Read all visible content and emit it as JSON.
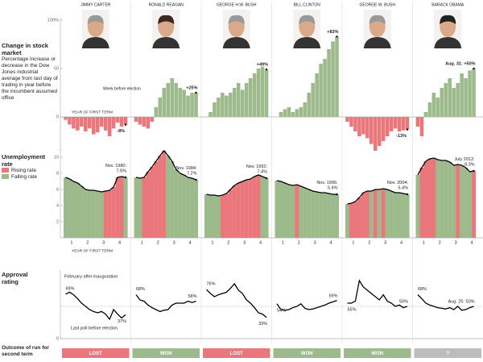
{
  "chart_data": [
    {
      "type": "bar",
      "title": "Change in stock market",
      "subtitle": "Percentage increase or decrease in the Dow Jones industrial average from last day of trading in year before the incumbent assumed office",
      "axis_note": "YEAR OF FIRST TERM",
      "annotation": "Week before election",
      "ylim": [
        -35,
        100
      ],
      "yticks": [
        {
          "value": 100,
          "label": "100%"
        },
        50,
        0
      ],
      "positive_color": "#9dba8c",
      "negative_color": "#e9777b",
      "series": [
        {
          "name": "JIMMY CARTER",
          "values": [
            -3,
            -8,
            -12,
            -14,
            -10,
            -15,
            -12,
            -18,
            -16,
            -10,
            -14,
            -20,
            -12,
            -6,
            -10,
            -8
          ],
          "end_label": "-8%"
        },
        {
          "name": "RONALD REAGAN",
          "values": [
            -5,
            -8,
            -10,
            -12,
            -5,
            10,
            20,
            30,
            35,
            40,
            35,
            30,
            28,
            22,
            25,
            25
          ],
          "end_label": "+25%"
        },
        {
          "name": "GEORGE H.W. BUSH",
          "values": [
            0,
            5,
            15,
            20,
            25,
            22,
            25,
            30,
            35,
            28,
            35,
            40,
            45,
            50,
            52,
            49
          ],
          "end_label": "+49%"
        },
        {
          "name": "BILL CLINTON",
          "values": [
            0,
            5,
            8,
            10,
            5,
            8,
            10,
            15,
            25,
            35,
            45,
            55,
            60,
            70,
            78,
            83
          ],
          "end_label": "+83%"
        },
        {
          "name": "GEORGE W. BUSH",
          "values": [
            -5,
            -10,
            -15,
            -20,
            -18,
            -22,
            -28,
            -35,
            -30,
            -25,
            -20,
            -15,
            -12,
            -15,
            -14,
            -13
          ],
          "end_label": "-13%"
        },
        {
          "name": "BARACK OBAMA",
          "values": [
            -10,
            -20,
            5,
            15,
            25,
            20,
            30,
            35,
            40,
            30,
            35,
            45,
            40,
            48,
            50
          ],
          "end_label": "Aug. 31: +50%"
        }
      ]
    },
    {
      "type": "bar",
      "title": "Unemployment rate",
      "legend": [
        {
          "name": "Rising rate",
          "color": "#e9777b"
        },
        {
          "name": "Falling rate",
          "color": "#9dba8c"
        }
      ],
      "years": [
        "1",
        "2",
        "3",
        "4"
      ],
      "axis_note": "YEAR OF FIRST TERM",
      "ylim": [
        0,
        11
      ],
      "yticks": [
        2,
        4,
        6,
        8,
        10
      ],
      "series": [
        {
          "values": [
            7.5,
            7.3,
            7.0,
            6.8,
            6.4,
            6.0,
            5.9,
            5.9,
            5.8,
            5.7,
            5.8,
            5.9,
            6.3,
            7.5,
            7.6,
            7.5
          ],
          "end_label": "Nov. 1980: 7.5%"
        },
        {
          "values": [
            7.5,
            7.4,
            7.5,
            8.2,
            8.8,
            9.5,
            10.2,
            10.8,
            10.2,
            9.5,
            8.5,
            8.0,
            7.8,
            7.5,
            7.4,
            7.2
          ],
          "end_label": "Nov. 1984: 7.2%"
        },
        {
          "values": [
            5.4,
            5.3,
            5.3,
            5.2,
            5.3,
            5.5,
            6.0,
            6.5,
            6.8,
            7.0,
            7.2,
            7.3,
            7.6,
            7.8,
            7.6,
            7.4
          ],
          "end_label": "Nov. 1992: 7.4%"
        },
        {
          "values": [
            7.1,
            7.0,
            6.8,
            6.6,
            6.5,
            6.6,
            6.4,
            6.2,
            6.0,
            5.8,
            5.7,
            5.6,
            5.6,
            5.5,
            5.4,
            5.4
          ],
          "end_label": "Nov. 1996: 5.4%"
        },
        {
          "values": [
            4.2,
            4.3,
            4.5,
            5.0,
            5.6,
            5.8,
            5.8,
            6.0,
            6.0,
            6.1,
            6.0,
            5.8,
            5.6,
            5.6,
            5.5,
            5.4
          ],
          "end_label": "Nov. 2004: 5.4%"
        },
        {
          "values": [
            7.8,
            8.7,
            9.5,
            9.8,
            9.9,
            9.7,
            9.6,
            9.6,
            9.4,
            9.0,
            9.1,
            9.0,
            8.7,
            8.2,
            8.3
          ],
          "end_label": "July 2012: 8.3%"
        }
      ]
    },
    {
      "type": "line",
      "title": "Approval rating",
      "start_note": "February after inauguration",
      "end_note": "Last poll before election",
      "ylim": [
        0,
        100
      ],
      "yticks": [
        0
      ],
      "reference_line": 50,
      "series": [
        {
          "values": [
            69,
            72,
            68,
            62,
            55,
            50,
            45,
            42,
            40,
            42,
            38,
            30,
            45,
            38,
            32,
            37
          ],
          "start_label": "69%",
          "end_label": "37%"
        },
        {
          "values": [
            68,
            60,
            58,
            52,
            48,
            45,
            42,
            44,
            45,
            52,
            55,
            55,
            55,
            58,
            56,
            58
          ],
          "start_label": "68%",
          "end_label": "58%"
        },
        {
          "values": [
            76,
            70,
            65,
            68,
            70,
            72,
            78,
            85,
            75,
            70,
            60,
            55,
            48,
            40,
            38,
            33
          ],
          "start_label": "76%",
          "end_label": "33%"
        },
        {
          "values": [
            54,
            45,
            44,
            45,
            48,
            50,
            54,
            47,
            45,
            46,
            48,
            50,
            52,
            55,
            57,
            59
          ],
          "start_label": "54%",
          "end_label": "59%"
        },
        {
          "values": [
            55,
            55,
            58,
            90,
            80,
            75,
            70,
            65,
            60,
            68,
            58,
            55,
            50,
            52,
            48,
            50
          ],
          "start_label": "55%",
          "end_label": "50%"
        },
        {
          "values": [
            68,
            62,
            55,
            52,
            50,
            48,
            47,
            46,
            48,
            45,
            50,
            44,
            45,
            48,
            50
          ],
          "start_label": "68%",
          "end_label": "Aug. 25: 50%"
        }
      ]
    },
    {
      "type": "outcome",
      "title": "Outcome of run for second term",
      "categories": [
        "LOST",
        "WON",
        "LOST",
        "WON",
        "WON",
        "?"
      ],
      "colors": [
        "#e9777b",
        "#9dba8c",
        "#e9777b",
        "#9dba8c",
        "#9dba8c",
        "#bdbdbd"
      ]
    }
  ]
}
